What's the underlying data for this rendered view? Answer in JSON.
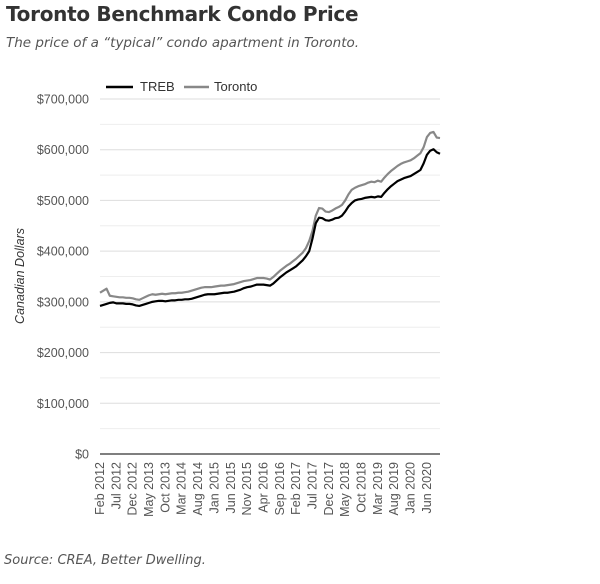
{
  "title": "Toronto Benchmark Condo Price",
  "subtitle": "The price of a “typical” condo apartment in Toronto.",
  "source": "Source: CREA, Better Dwelling.",
  "chart_data": {
    "type": "line",
    "title": "Toronto Benchmark Condo Price",
    "subtitle": "The price of a “typical” condo apartment in Toronto.",
    "xlabel": "",
    "ylabel": "Canadian Dollars",
    "ylim": [
      0,
      700000
    ],
    "yticks": [
      0,
      100000,
      200000,
      300000,
      400000,
      500000,
      600000,
      700000
    ],
    "ytick_labels": [
      "$0",
      "$100,000",
      "$200,000",
      "$300,000",
      "$400,000",
      "$500,000",
      "$600,000",
      "$700,000"
    ],
    "grid": true,
    "legend_position": "top-left",
    "x_start": "Feb 2012",
    "x_end": "Jun 2020",
    "x_frequency": "monthly",
    "xtick_labels": [
      "Feb 2012",
      "Jul 2012",
      "Dec 2012",
      "May 2013",
      "Oct 2013",
      "Mar 2014",
      "Aug 2014",
      "Jan 2015",
      "Jun 2015",
      "Nov 2015",
      "Apr 2016",
      "Sep 2016",
      "Feb 2017",
      "Jul 2017",
      "Dec 2017",
      "May 2018",
      "Oct 2018",
      "Mar 2019",
      "Aug 2019",
      "Jan 2020",
      "Jun 2020"
    ],
    "series": [
      {
        "name": "TREB",
        "color": "#000000",
        "values": [
          292000,
          294000,
          296000,
          298000,
          299000,
          297000,
          297000,
          297000,
          296000,
          296000,
          295000,
          293000,
          292000,
          294000,
          296000,
          298000,
          300000,
          301000,
          302000,
          302000,
          301000,
          302000,
          303000,
          303000,
          304000,
          304000,
          305000,
          305000,
          306000,
          308000,
          310000,
          312000,
          314000,
          315000,
          315000,
          315000,
          316000,
          317000,
          318000,
          318000,
          319000,
          320000,
          322000,
          324000,
          327000,
          329000,
          330000,
          332000,
          334000,
          334000,
          334000,
          333000,
          332000,
          336000,
          342000,
          348000,
          353000,
          358000,
          362000,
          366000,
          370000,
          376000,
          382000,
          390000,
          400000,
          425000,
          455000,
          466000,
          465000,
          461000,
          460000,
          462000,
          465000,
          466000,
          470000,
          478000,
          488000,
          495000,
          500000,
          502000,
          503000,
          505000,
          506000,
          507000,
          506000,
          508000,
          507000,
          515000,
          522000,
          528000,
          533000,
          538000,
          541000,
          544000,
          546000,
          548000,
          552000,
          556000,
          560000,
          573000,
          590000,
          598000,
          601000,
          595000,
          592000
        ]
      },
      {
        "name": "Toronto",
        "color": "#888888",
        "values": [
          318000,
          322000,
          326000,
          312000,
          311000,
          310000,
          309000,
          309000,
          308000,
          308000,
          307000,
          305000,
          304000,
          307000,
          310000,
          313000,
          315000,
          314000,
          315000,
          316000,
          315000,
          316000,
          317000,
          317000,
          318000,
          318000,
          319000,
          320000,
          322000,
          324000,
          326000,
          328000,
          329000,
          329000,
          329000,
          330000,
          331000,
          332000,
          332000,
          333000,
          334000,
          335000,
          337000,
          339000,
          341000,
          342000,
          343000,
          345000,
          347000,
          347000,
          347000,
          346000,
          344000,
          349000,
          355000,
          361000,
          366000,
          371000,
          375000,
          380000,
          385000,
          391000,
          397000,
          406000,
          420000,
          440000,
          470000,
          485000,
          484000,
          478000,
          477000,
          480000,
          484000,
          487000,
          491000,
          500000,
          512000,
          521000,
          525000,
          528000,
          530000,
          532000,
          535000,
          537000,
          536000,
          539000,
          537000,
          545000,
          552000,
          558000,
          563000,
          568000,
          572000,
          575000,
          577000,
          579000,
          583000,
          588000,
          593000,
          605000,
          625000,
          633000,
          635000,
          624000,
          623000
        ]
      }
    ]
  }
}
